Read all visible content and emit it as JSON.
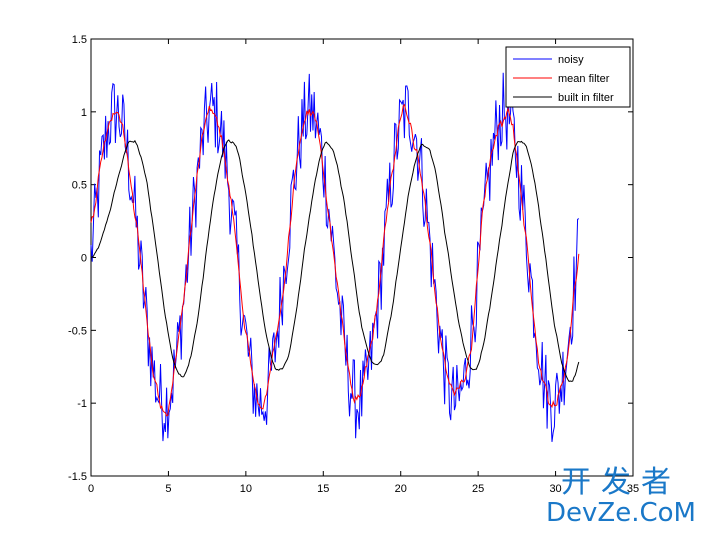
{
  "chart_data": {
    "type": "line",
    "xlim": [
      0,
      35
    ],
    "ylim": [
      -1.5,
      1.5
    ],
    "xticks": [
      "0",
      "5",
      "10",
      "15",
      "20",
      "25",
      "30",
      "35"
    ],
    "yticks": [
      "1.5",
      "1",
      "0.5",
      "0",
      "-0.5",
      "-1",
      "-1.5"
    ],
    "legend_position": "top-right",
    "grid": false,
    "series": [
      {
        "name": "noisy",
        "color": "#0000ff"
      },
      {
        "name": "mean filter",
        "color": "#ff0000"
      },
      {
        "name": "built in filter",
        "color": "#000000"
      }
    ],
    "underlying_signal": {
      "form": "sine",
      "amplitude": 1.0,
      "period": 6.28,
      "x_range": [
        0,
        31.5
      ]
    }
  },
  "watermark": {
    "cn": "开发者",
    "en": "DevZe.CoM",
    "color": "#1a78c8"
  }
}
